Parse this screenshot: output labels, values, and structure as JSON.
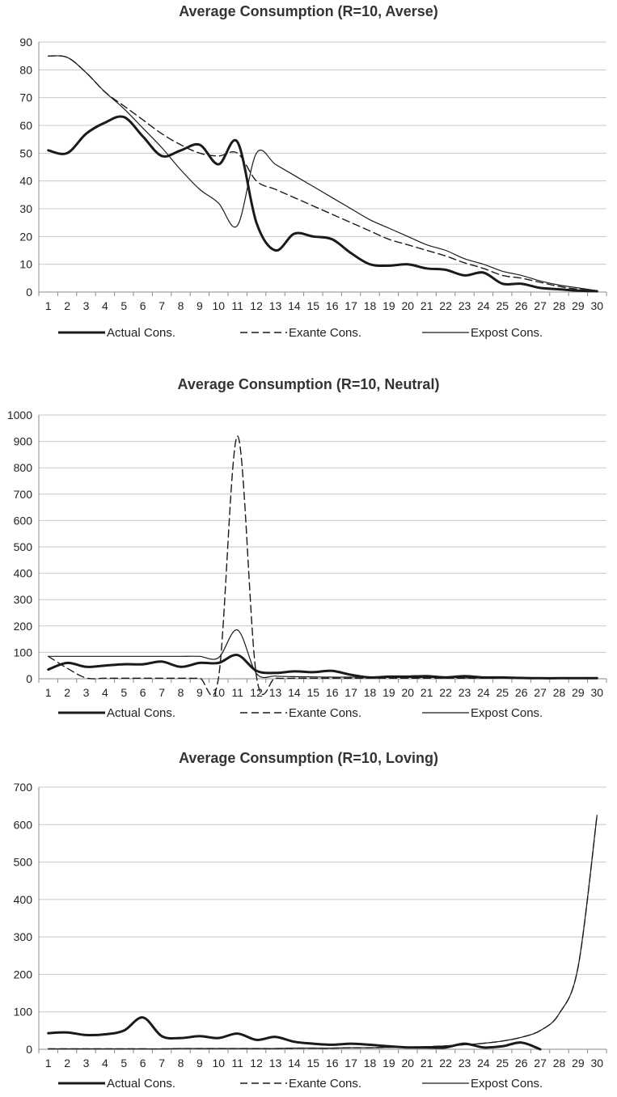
{
  "chart_data": [
    {
      "type": "line",
      "title": "Average Consumption (R=10, Averse)",
      "xlabel": "",
      "ylabel": "",
      "x": [
        1,
        2,
        3,
        4,
        5,
        6,
        7,
        8,
        9,
        10,
        11,
        12,
        13,
        14,
        15,
        16,
        17,
        18,
        19,
        20,
        21,
        22,
        23,
        24,
        25,
        26,
        27,
        28,
        29,
        30
      ],
      "xticks": [
        "1",
        "2",
        "3",
        "4",
        "5",
        "6",
        "7",
        "8",
        "9",
        "10",
        "11",
        "12",
        "13",
        "14",
        "15",
        "16",
        "17",
        "18",
        "19",
        "20",
        "21",
        "22",
        "23",
        "24",
        "25",
        "26",
        "27",
        "28",
        "29",
        "30"
      ],
      "ylim": [
        0,
        90
      ],
      "yticks": [
        0,
        10,
        20,
        30,
        40,
        50,
        60,
        70,
        80,
        90
      ],
      "grid": true,
      "legend": "bottom",
      "series": [
        {
          "name": "Actual Cons.",
          "style": "thick",
          "values": [
            51,
            50,
            57,
            61,
            63,
            56,
            49,
            51,
            53,
            46,
            54,
            25,
            15,
            21,
            20,
            19,
            14,
            10,
            9.5,
            10,
            8.5,
            8,
            6,
            7,
            3,
            3,
            1.5,
            1,
            0.5,
            0.3
          ]
        },
        {
          "name": "Exante Cons.",
          "style": "dashed",
          "values": [
            85,
            84.5,
            79,
            72,
            67,
            62,
            57,
            53,
            50,
            49,
            50,
            40,
            37,
            34,
            31,
            28,
            25,
            22,
            19,
            17,
            15,
            13,
            10.5,
            8.5,
            6,
            5,
            3.5,
            2,
            1,
            0.5
          ]
        },
        {
          "name": "Expost Cons.",
          "style": "thin",
          "values": [
            85,
            84.5,
            79,
            72,
            66,
            59,
            52,
            44,
            37,
            32,
            24,
            50,
            46,
            42,
            38,
            34,
            30,
            26,
            23,
            20,
            17,
            15,
            12,
            10,
            7.5,
            6,
            4,
            2.5,
            1.5,
            0.5
          ]
        }
      ]
    },
    {
      "type": "line",
      "title": "Average Consumption (R=10, Neutral)",
      "xlabel": "",
      "ylabel": "",
      "x": [
        1,
        2,
        3,
        4,
        5,
        6,
        7,
        8,
        9,
        10,
        11,
        12,
        13,
        14,
        15,
        16,
        17,
        18,
        19,
        20,
        21,
        22,
        23,
        24,
        25,
        26,
        27,
        28,
        29,
        30
      ],
      "xticks": [
        "1",
        "2",
        "3",
        "4",
        "5",
        "6",
        "7",
        "8",
        "9",
        "10",
        "11",
        "12",
        "13",
        "14",
        "15",
        "16",
        "17",
        "18",
        "19",
        "20",
        "21",
        "22",
        "23",
        "24",
        "25",
        "26",
        "27",
        "28",
        "29",
        "30"
      ],
      "ylim": [
        0,
        1000
      ],
      "yticks": [
        0,
        100,
        200,
        300,
        400,
        500,
        600,
        700,
        800,
        900,
        1000
      ],
      "grid": true,
      "legend": "bottom",
      "series": [
        {
          "name": "Actual Cons.",
          "style": "thick",
          "values": [
            35,
            60,
            45,
            50,
            55,
            55,
            65,
            45,
            60,
            60,
            90,
            30,
            22,
            28,
            25,
            30,
            15,
            5,
            8,
            8,
            10,
            5,
            10,
            5,
            5,
            3,
            2,
            2,
            2,
            2
          ]
        },
        {
          "name": "Exante Cons.",
          "style": "dashed",
          "values": [
            85,
            40,
            3,
            2,
            2,
            2,
            2,
            2,
            2,
            5,
            920,
            10,
            2,
            2,
            2,
            2,
            2,
            2,
            2,
            2,
            2,
            2,
            2,
            2,
            2,
            2,
            2,
            2,
            2,
            2
          ]
        },
        {
          "name": "Expost Cons.",
          "style": "thin",
          "values": [
            85,
            85,
            85,
            85,
            85,
            85,
            85,
            85,
            85,
            80,
            185,
            20,
            10,
            8,
            7,
            6,
            6,
            5,
            5,
            5,
            5,
            5,
            4,
            4,
            4,
            3,
            3,
            3,
            3,
            3
          ]
        }
      ]
    },
    {
      "type": "line",
      "title": "Average Consumption (R=10, Loving)",
      "xlabel": "",
      "ylabel": "",
      "x": [
        1,
        2,
        3,
        4,
        5,
        6,
        7,
        8,
        9,
        10,
        11,
        12,
        13,
        14,
        15,
        16,
        17,
        18,
        19,
        20,
        21,
        22,
        23,
        24,
        25,
        26,
        27,
        28,
        29,
        30
      ],
      "xticks": [
        "1",
        "2",
        "3",
        "4",
        "5",
        "6",
        "7",
        "8",
        "9",
        "10",
        "11",
        "12",
        "13",
        "14",
        "15",
        "16",
        "17",
        "18",
        "19",
        "20",
        "21",
        "22",
        "23",
        "24",
        "25",
        "26",
        "27",
        "28",
        "29",
        "30"
      ],
      "ylim": [
        0,
        700
      ],
      "yticks": [
        0,
        100,
        200,
        300,
        400,
        500,
        600,
        700
      ],
      "grid": true,
      "legend": "bottom",
      "series": [
        {
          "name": "Actual Cons.",
          "style": "thick",
          "values": [
            43,
            45,
            38,
            40,
            50,
            85,
            35,
            30,
            35,
            30,
            42,
            25,
            33,
            20,
            15,
            12,
            15,
            12,
            8,
            5,
            5,
            5,
            15,
            5,
            8,
            18,
            0,
            null,
            null,
            null
          ]
        },
        {
          "name": "Exante Cons.",
          "style": "dashed",
          "values": [
            1,
            1,
            1,
            1,
            1,
            1,
            1,
            2,
            2,
            2,
            2,
            2,
            2,
            3,
            3,
            3,
            4,
            4,
            5,
            6,
            7,
            9,
            12,
            16,
            22,
            32,
            50,
            95,
            220,
            625
          ]
        },
        {
          "name": "Expost Cons.",
          "style": "thin",
          "values": [
            1,
            1,
            1,
            1,
            1,
            1,
            1,
            2,
            2,
            2,
            2,
            2,
            2,
            3,
            3,
            3,
            4,
            4,
            5,
            6,
            7,
            9,
            12,
            16,
            22,
            32,
            50,
            95,
            220,
            625
          ]
        }
      ]
    }
  ]
}
